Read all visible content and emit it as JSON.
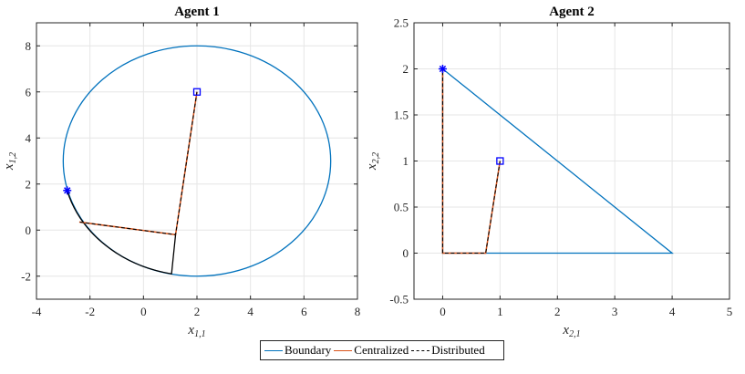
{
  "chart_data": [
    {
      "type": "line",
      "title": "Agent 1",
      "xlabel": {
        "base": "x",
        "sub": "1,1"
      },
      "ylabel": {
        "base": "x",
        "sub": "1,2"
      },
      "xlim": [
        -4,
        8
      ],
      "ylim": [
        -3,
        9
      ],
      "xticks": [
        -4,
        -2,
        0,
        2,
        4,
        6,
        8
      ],
      "yticks": [
        -2,
        0,
        2,
        4,
        6,
        8
      ],
      "xtick_labels": [
        "-4",
        "-2",
        "0",
        "2",
        "4",
        "6",
        "8"
      ],
      "ytick_labels": [
        "-2",
        "0",
        "2",
        "4",
        "6",
        "8"
      ],
      "grid": true,
      "boundary": {
        "shape": "ellipse",
        "center": [
          2,
          3
        ],
        "rx": 5,
        "ry": 5
      },
      "centralized": [
        [
          2,
          6
        ],
        [
          1.2,
          -0.2
        ],
        [
          -2.4,
          0.35
        ]
      ],
      "distributed": [
        [
          2,
          6
        ],
        [
          1.2,
          -0.2
        ],
        [
          -2.4,
          0.35
        ]
      ],
      "arc_points": [
        [
          1.2,
          -0.2
        ],
        [
          1.05,
          -1.9
        ],
        [
          -1.0,
          -1.25
        ],
        [
          -2.3,
          0.3
        ],
        [
          -2.85,
          1.7
        ]
      ],
      "start": [
        2,
        6
      ],
      "optimum": [
        -2.85,
        1.72
      ]
    },
    {
      "type": "line",
      "title": "Agent 2",
      "xlabel": {
        "base": "x",
        "sub": "2,1"
      },
      "ylabel": {
        "base": "x",
        "sub": "2,2"
      },
      "xlim": [
        -0.5,
        5
      ],
      "ylim": [
        -0.5,
        2.5
      ],
      "xticks": [
        -0.5,
        0,
        1,
        2,
        3,
        4,
        5
      ],
      "yticks": [
        -0.5,
        0,
        0.5,
        1,
        1.5,
        2,
        2.5
      ],
      "xtick_labels": [
        "",
        "0",
        "1",
        "2",
        "3",
        "4",
        "5"
      ],
      "ytick_labels": [
        "-0.5",
        "0",
        "0.5",
        "1",
        "1.5",
        "2",
        "2.5"
      ],
      "grid": true,
      "boundary": {
        "shape": "polygon",
        "points": [
          [
            0,
            2
          ],
          [
            4,
            0
          ],
          [
            0,
            0
          ],
          [
            0,
            2
          ]
        ]
      },
      "centralized": [
        [
          1,
          1
        ],
        [
          0.75,
          0
        ],
        [
          0,
          0
        ],
        [
          0,
          2
        ]
      ],
      "distributed": [
        [
          1,
          1
        ],
        [
          0.75,
          0
        ],
        [
          0,
          0
        ],
        [
          0,
          2
        ]
      ],
      "start": [
        1,
        1
      ],
      "optimum": [
        0,
        2
      ]
    }
  ],
  "legend": {
    "items": [
      {
        "label": "Boundary",
        "color": "#0072BD",
        "style": "solid"
      },
      {
        "label": "Centralized",
        "color": "#D95319",
        "style": "solid"
      },
      {
        "label": "Distributed",
        "color": "#000000",
        "style": "dashed"
      }
    ]
  },
  "colors": {
    "boundary": "#0072BD",
    "centralized": "#D95319",
    "distributed": "#000000",
    "marker": "#0000FF",
    "grid": "#e6e6e6",
    "axis": "#262626"
  }
}
